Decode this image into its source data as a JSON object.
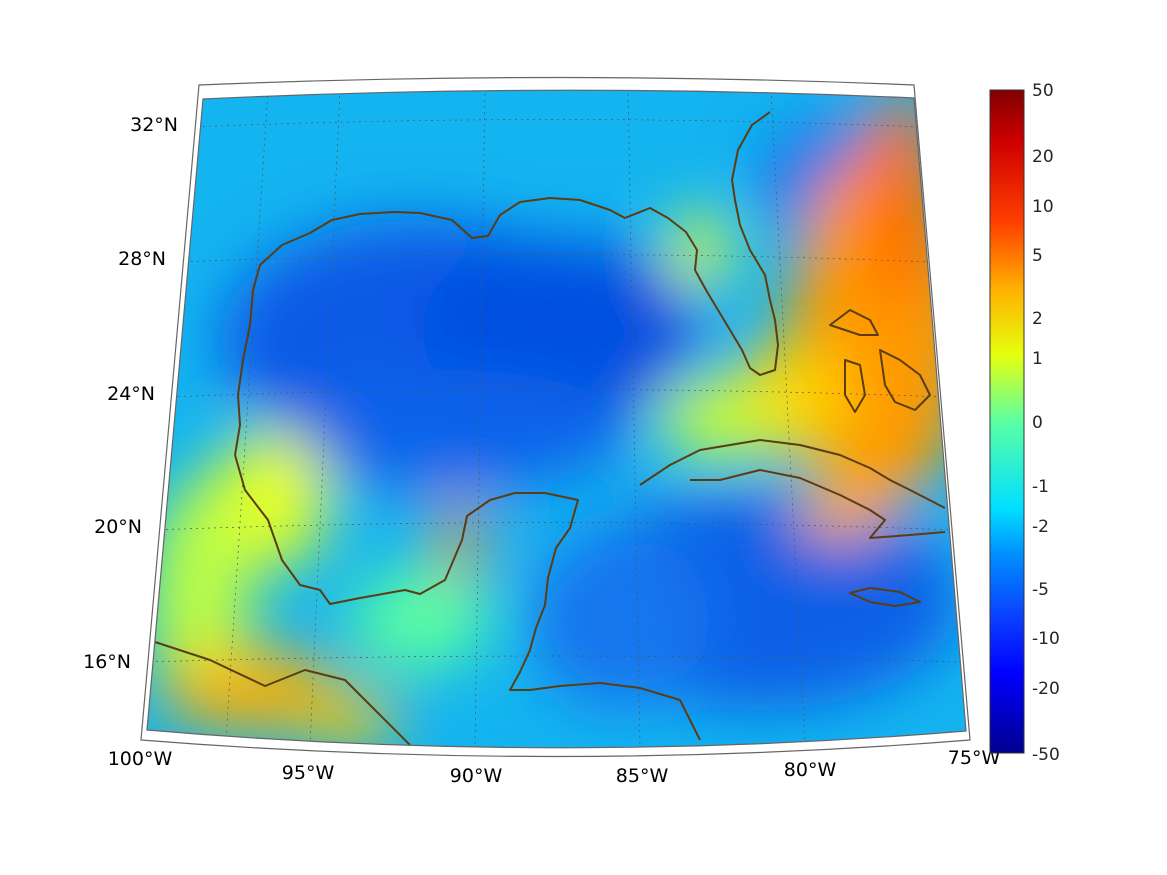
{
  "map": {
    "region": "Gulf of Mexico and Caribbean",
    "projection": "conic",
    "lon_range": [
      -100,
      -75
    ],
    "lat_range": [
      14,
      33
    ],
    "lat_labels": [
      "32°N",
      "28°N",
      "24°N",
      "20°N",
      "16°N"
    ],
    "lon_labels": [
      "100°W",
      "95°W",
      "90°W",
      "85°W",
      "80°W",
      "75°W"
    ],
    "coastline_color": "#5a3d14",
    "grid": true
  },
  "colorbar": {
    "colormap": "jet",
    "ticks": [
      "50",
      "20",
      "10",
      "5",
      "2",
      "1",
      "0",
      "-1",
      "-2",
      "-5",
      "-10",
      "-20",
      "-50"
    ]
  }
}
